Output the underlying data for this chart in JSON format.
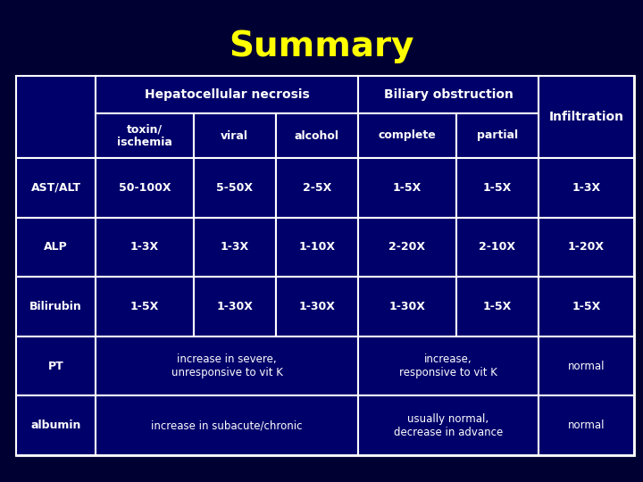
{
  "title": "Summary",
  "title_color": "#FFFF00",
  "title_fontsize": 28,
  "bg_color": "#000033",
  "table_bg": "#00006B",
  "cell_text_color": "#FFFFFF",
  "border_color": "#FFFFFF",
  "rows": [
    [
      "AST/ALT",
      "50-100X",
      "5-50X",
      "2-5X",
      "1-5X",
      "1-5X",
      "1-3X"
    ],
    [
      "ALP",
      "1-3X",
      "1-3X",
      "1-10X",
      "2-20X",
      "2-10X",
      "1-20X"
    ],
    [
      "Bilirubin",
      "1-5X",
      "1-30X",
      "1-30X",
      "1-30X",
      "1-5X",
      "1-5X"
    ],
    [
      "PT",
      "increase in severe,\nunresponsive to vit K",
      "",
      "",
      "increase,\nresponsive to vit K",
      "",
      "normal"
    ],
    [
      "albumin",
      "increase in subacute/chronic",
      "",
      "",
      "usually normal,\ndecrease in advance",
      "",
      "normal"
    ]
  ]
}
